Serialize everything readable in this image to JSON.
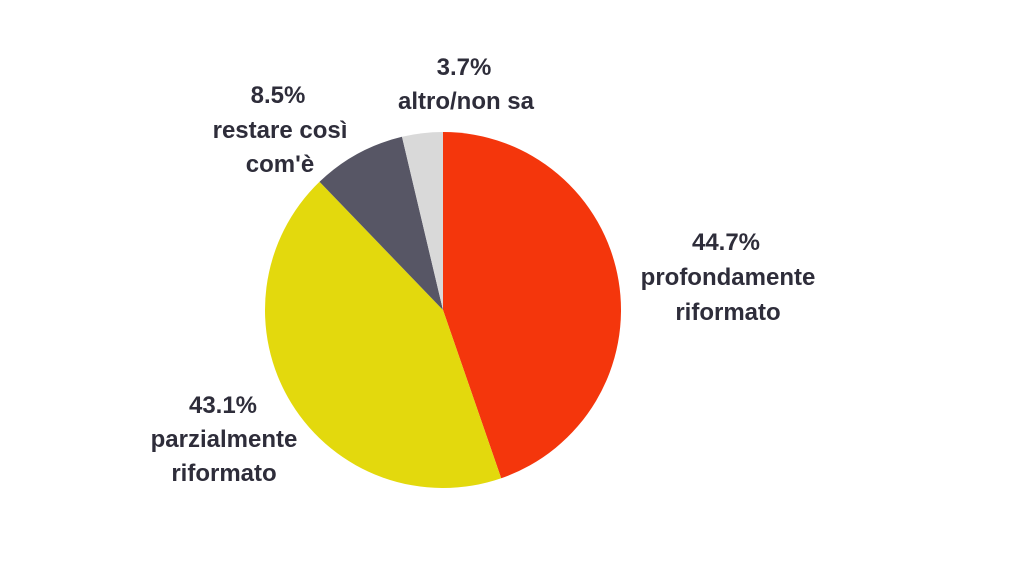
{
  "chart_data": {
    "type": "pie",
    "start_angle_deg": 0,
    "direction": "clockwise",
    "slices": [
      {
        "name_lines": [
          "profondamente",
          "riformato"
        ],
        "value_label": "44.7%",
        "value": 44.7,
        "color": "#f4360c"
      },
      {
        "name_lines": [
          "parzialmente",
          "riformato"
        ],
        "value_label": "43.1%",
        "value": 43.1,
        "color": "#e3d90d"
      },
      {
        "name_lines": [
          "restare così",
          "com'è"
        ],
        "value_label": "8.5%",
        "value": 8.5,
        "color": "#575665"
      },
      {
        "name_lines": [
          "altro/non sa"
        ],
        "value_label": "3.7%",
        "value": 3.7,
        "color": "#d9d9d9"
      }
    ]
  }
}
